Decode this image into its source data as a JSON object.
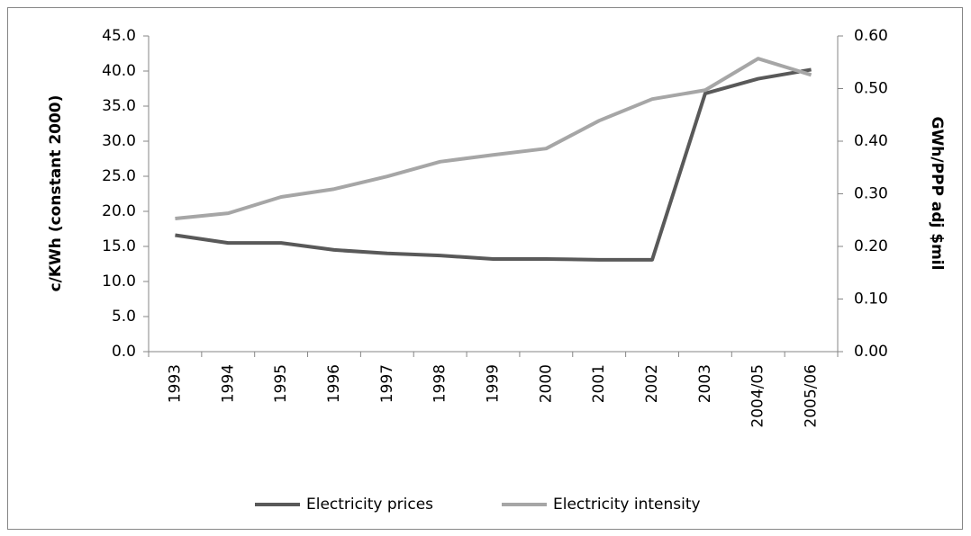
{
  "chart_data": {
    "type": "line",
    "categories": [
      "1993",
      "1994",
      "1995",
      "1996",
      "1997",
      "1998",
      "1999",
      "2000",
      "2001",
      "2002",
      "2003",
      "2004/05",
      "2005/06"
    ],
    "series": [
      {
        "name": "Electricity prices",
        "color": "#595959",
        "values": [
          16.6,
          15.5,
          15.5,
          14.5,
          14.0,
          13.7,
          13.2,
          13.2,
          13.1,
          13.1,
          36.8,
          38.9,
          40.2
        ]
      },
      {
        "name": "Electricity intensity",
        "color": "#a6a6a6",
        "axis": "y2",
        "values": [
          0.253,
          0.263,
          0.294,
          0.309,
          0.333,
          0.361,
          0.374,
          0.386,
          0.439,
          0.48,
          0.497,
          0.557,
          0.526
        ]
      }
    ],
    "ylabel": "c/KWh (constant 2000)",
    "y2label": "GWh/PPP adj $mil",
    "ylim": [
      0,
      45
    ],
    "yticks": [
      {
        "value": 0,
        "label": "0.0"
      },
      {
        "value": 5,
        "label": "5.0"
      },
      {
        "value": 10,
        "label": "10.0"
      },
      {
        "value": 15,
        "label": "15.0"
      },
      {
        "value": 20,
        "label": "20.0"
      },
      {
        "value": 25,
        "label": "25.0"
      },
      {
        "value": 30,
        "label": "30.0"
      },
      {
        "value": 35,
        "label": "35.0"
      },
      {
        "value": 40,
        "label": "40.0"
      },
      {
        "value": 45,
        "label": "45.0"
      }
    ],
    "y2lim": [
      0,
      0.6
    ],
    "y2ticks": [
      {
        "value": 0,
        "label": "0.00"
      },
      {
        "value": 0.1,
        "label": "0.10"
      },
      {
        "value": 0.2,
        "label": "0.20"
      },
      {
        "value": 0.3,
        "label": "0.30"
      },
      {
        "value": 0.4,
        "label": "0.40"
      },
      {
        "value": 0.5,
        "label": "0.50"
      },
      {
        "value": 0.6,
        "label": "0.60"
      }
    ],
    "legend": "bottom"
  }
}
